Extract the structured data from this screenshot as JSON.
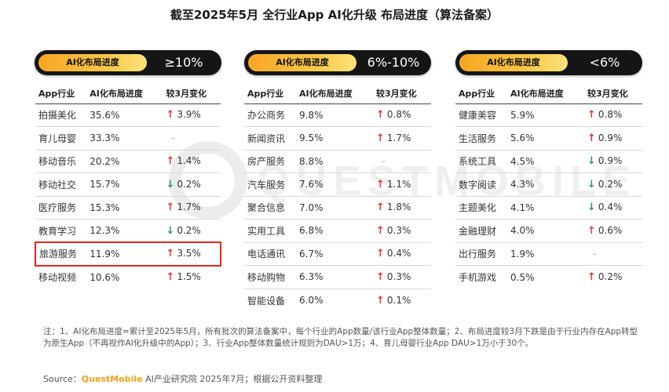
{
  "title": "截至2025年5月 全行业App AI化升级 布局进度（算法备案）",
  "watermark": "QUESTMOBILE",
  "colors": {
    "up": "#e23a2e",
    "down": "#2a9b5a",
    "accent": "#f6a623",
    "highlight": "#e8251b"
  },
  "chart_data": {
    "type": "table",
    "columns": [
      "App行业",
      "AI化布局进度",
      "较3月变化"
    ],
    "groups": [
      {
        "tag": "AI化布局进度",
        "range": "≥10%",
        "rows": [
          {
            "industry": "拍摄美化",
            "progress": "35.6%",
            "change": "3.9%",
            "dir": "up"
          },
          {
            "industry": "育儿母婴",
            "progress": "33.3%",
            "change": "–",
            "dir": "none"
          },
          {
            "industry": "移动音乐",
            "progress": "20.2%",
            "change": "1.4%",
            "dir": "up"
          },
          {
            "industry": "移动社交",
            "progress": "15.7%",
            "change": "0.2%",
            "dir": "down"
          },
          {
            "industry": "医疗服务",
            "progress": "15.3%",
            "change": "1.7%",
            "dir": "up"
          },
          {
            "industry": "教育学习",
            "progress": "12.3%",
            "change": "0.2%",
            "dir": "down"
          },
          {
            "industry": "旅游服务",
            "progress": "11.9%",
            "change": "3.5%",
            "dir": "up",
            "highlight": true
          },
          {
            "industry": "移动视频",
            "progress": "10.6%",
            "change": "1.5%",
            "dir": "up"
          }
        ]
      },
      {
        "tag": "AI化布局进度",
        "range": "6%-10%",
        "rows": [
          {
            "industry": "办公商务",
            "progress": "9.8%",
            "change": "0.8%",
            "dir": "up"
          },
          {
            "industry": "新闻资讯",
            "progress": "9.5%",
            "change": "1.7%",
            "dir": "up"
          },
          {
            "industry": "房产服务",
            "progress": "8.8%",
            "change": "–",
            "dir": "none"
          },
          {
            "industry": "汽车服务",
            "progress": "7.6%",
            "change": "1.1%",
            "dir": "up"
          },
          {
            "industry": "聚合信息",
            "progress": "7.0%",
            "change": "1.8%",
            "dir": "up"
          },
          {
            "industry": "实用工具",
            "progress": "6.8%",
            "change": "0.3%",
            "dir": "up"
          },
          {
            "industry": "电话通讯",
            "progress": "6.7%",
            "change": "0.4%",
            "dir": "up"
          },
          {
            "industry": "移动购物",
            "progress": "6.3%",
            "change": "0.3%",
            "dir": "up"
          },
          {
            "industry": "智能设备",
            "progress": "6.0%",
            "change": "0.1%",
            "dir": "up"
          }
        ]
      },
      {
        "tag": "AI化布局进度",
        "range": "<6%",
        "rows": [
          {
            "industry": "健康美容",
            "progress": "5.9%",
            "change": "0.8%",
            "dir": "up"
          },
          {
            "industry": "生活服务",
            "progress": "5.6%",
            "change": "0.9%",
            "dir": "up"
          },
          {
            "industry": "系统工具",
            "progress": "4.5%",
            "change": "0.9%",
            "dir": "down"
          },
          {
            "industry": "数字阅读",
            "progress": "4.3%",
            "change": "0.2%",
            "dir": "down"
          },
          {
            "industry": "主题美化",
            "progress": "4.1%",
            "change": "0.4%",
            "dir": "down"
          },
          {
            "industry": "金融理财",
            "progress": "4.0%",
            "change": "0.6%",
            "dir": "up"
          },
          {
            "industry": "出行服务",
            "progress": "1.9%",
            "change": "–",
            "dir": "none"
          },
          {
            "industry": "手机游戏",
            "progress": "0.5%",
            "change": "0.2%",
            "dir": "up"
          }
        ]
      }
    ]
  },
  "notes": "注：1、AI化布局进度=累计至2025年5月，所有批次的算法备案中，每个行业的App数量/该行业App整体数量；2、布局进度较3月下跌是由于行业内存在App转型为原生App（不再视作AI化升级中的App）；3、行业App整体数量统计规则为DAU>1万；4、育儿母婴行业App DAU>1万小于30个。",
  "source": {
    "label": "Source：",
    "brand": "QuestMobile",
    "text": " AI产业研究院 2025年7月；根据公开资料整理"
  }
}
